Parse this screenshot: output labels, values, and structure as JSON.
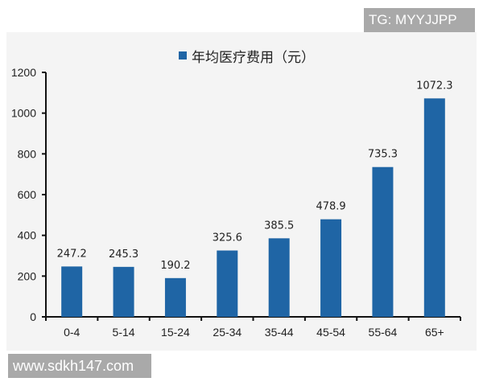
{
  "watermarks": {
    "top": "TG: MYYJJPP",
    "bottom": "www.sdkh147.com"
  },
  "colors": {
    "bar": "#1f65a5",
    "panel": "#f4f4f4",
    "axis": "#111111"
  },
  "legend": {
    "label": "年均医疗费用（元）"
  },
  "chart_data": {
    "type": "bar",
    "title": "",
    "xlabel": "",
    "ylabel": "",
    "legend_position": "top",
    "grid": false,
    "ylim": [
      0,
      1200
    ],
    "yticks": [
      0,
      200,
      400,
      600,
      800,
      1000,
      1200
    ],
    "categories": [
      "0-4",
      "5-14",
      "15-24",
      "25-34",
      "35-44",
      "45-54",
      "55-64",
      "65+"
    ],
    "series": [
      {
        "name": "年均医疗费用（元）",
        "values": [
          247.2,
          245.3,
          190.2,
          325.6,
          385.5,
          478.9,
          735.3,
          1072.3
        ],
        "labels": [
          "247.2",
          "245.3",
          "190.2",
          "325.6",
          "385.5",
          "478.9",
          "735.3",
          "1072.3"
        ]
      }
    ]
  }
}
